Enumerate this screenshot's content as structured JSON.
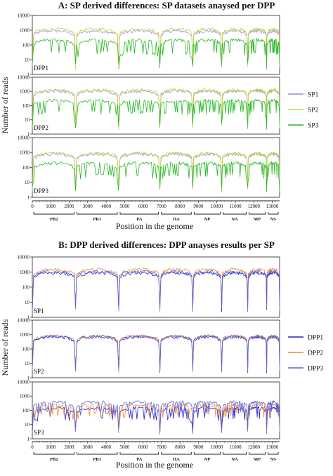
{
  "chart_data": [
    {
      "type": "line",
      "title": "A: SP derived differences: SP datasets anaysed per DPP",
      "xlabel": "Position in the genome",
      "ylabel": "Number of reads",
      "yscale": "log",
      "xlim": [
        0,
        13400
      ],
      "x_ticks": [
        "0",
        "1000",
        "2000",
        "3000",
        "4000",
        "5000",
        "6000",
        "7000",
        "8000",
        "9000",
        "10000",
        "11000",
        "12000",
        "13000"
      ],
      "segments": [
        {
          "name": "PB2",
          "start": 0,
          "end": 2341
        },
        {
          "name": "PB1",
          "start": 2341,
          "end": 4682
        },
        {
          "name": "PA",
          "start": 4682,
          "end": 6915
        },
        {
          "name": "HA",
          "start": 6915,
          "end": 8693
        },
        {
          "name": "NP",
          "start": 8693,
          "end": 10258
        },
        {
          "name": "NA",
          "start": 10258,
          "end": 11671
        },
        {
          "name": "MP",
          "start": 11671,
          "end": 12698
        },
        {
          "name": "NS",
          "start": 12698,
          "end": 13588
        }
      ],
      "legend": {
        "placement": "right",
        "entries": [
          {
            "name": "SP1",
            "color": "#8e8ee6"
          },
          {
            "name": "SP2",
            "color": "#c9d12a"
          },
          {
            "name": "SP3",
            "color": "#22b822"
          }
        ]
      },
      "subplots": [
        {
          "label": "DPP1",
          "ylim": [
            1,
            10000
          ],
          "y_ticks": [
            "1",
            "10",
            "100",
            "1000",
            "10000"
          ],
          "series": [
            {
              "name": "SP1",
              "color": "#8e8ee6",
              "level": 900
            },
            {
              "name": "SP2",
              "color": "#c9d12a",
              "level": 1200
            },
            {
              "name": "SP3",
              "color": "#22b822",
              "level": 220
            }
          ]
        },
        {
          "label": "DPP2",
          "ylim": [
            1,
            10000
          ],
          "y_ticks": [
            "1",
            "10",
            "100",
            "1000",
            "10000"
          ],
          "series": [
            {
              "name": "SP1",
              "color": "#8e8ee6",
              "level": 1100
            },
            {
              "name": "SP2",
              "color": "#c9d12a",
              "level": 1300
            },
            {
              "name": "SP3",
              "color": "#22b822",
              "level": 230
            }
          ]
        },
        {
          "label": "DPP3",
          "ylim": [
            1,
            10000
          ],
          "y_ticks": [
            "1",
            "10",
            "100",
            "1000",
            "10000"
          ],
          "series": [
            {
              "name": "SP1",
              "color": "#8e8ee6",
              "level": 800
            },
            {
              "name": "SP2",
              "color": "#c9d12a",
              "level": 900
            },
            {
              "name": "SP3",
              "color": "#22b822",
              "level": 200
            }
          ]
        }
      ]
    },
    {
      "type": "line",
      "title": "B: DPP derived differences: DPP anayses results per SP",
      "xlabel": "Position in the genome",
      "ylabel": "Number of reads",
      "yscale": "log",
      "xlim": [
        0,
        13400
      ],
      "x_ticks": [
        "0",
        "1000",
        "2000",
        "3000",
        "4000",
        "5000",
        "6000",
        "7000",
        "8000",
        "9000",
        "10000",
        "11000",
        "12000",
        "13000"
      ],
      "segments": [
        {
          "name": "PB2",
          "start": 0,
          "end": 2341
        },
        {
          "name": "PB1",
          "start": 2341,
          "end": 4682
        },
        {
          "name": "PA",
          "start": 4682,
          "end": 6915
        },
        {
          "name": "HA",
          "start": 6915,
          "end": 8693
        },
        {
          "name": "NP",
          "start": 8693,
          "end": 10258
        },
        {
          "name": "NA",
          "start": 10258,
          "end": 11671
        },
        {
          "name": "MP",
          "start": 11671,
          "end": 12698
        },
        {
          "name": "NS",
          "start": 12698,
          "end": 13588
        }
      ],
      "legend": {
        "placement": "right",
        "entries": [
          {
            "name": "DPP1",
            "color": "#2222cc"
          },
          {
            "name": "DPP2",
            "color": "#f08a30"
          },
          {
            "name": "DPP3",
            "color": "#5a62d8"
          }
        ]
      },
      "subplots": [
        {
          "label": "SP1",
          "ylim": [
            1,
            10000
          ],
          "y_ticks": [
            "1",
            "10",
            "100",
            "1000",
            "10000"
          ],
          "series": [
            {
              "name": "DPP1",
              "color": "#2222cc",
              "level": 900
            },
            {
              "name": "DPP2",
              "color": "#f08a30",
              "level": 1500
            },
            {
              "name": "DPP3",
              "color": "#5a62d8",
              "level": 1100
            }
          ]
        },
        {
          "label": "SP2",
          "ylim": [
            1,
            10000
          ],
          "y_ticks": [
            "1",
            "10",
            "100",
            "1000",
            "10000"
          ],
          "series": [
            {
              "name": "DPP1",
              "color": "#2222cc",
              "level": 700
            },
            {
              "name": "DPP2",
              "color": "#f08a30",
              "level": 800
            },
            {
              "name": "DPP3",
              "color": "#5a62d8",
              "level": 750
            }
          ]
        },
        {
          "label": "SP3",
          "ylim": [
            1,
            10000
          ],
          "y_ticks": [
            "1",
            "10",
            "100",
            "1000",
            "10000"
          ],
          "series": [
            {
              "name": "DPP1",
              "color": "#2222cc",
              "level": 150
            },
            {
              "name": "DPP2",
              "color": "#f08a30",
              "level": 250
            },
            {
              "name": "DPP3",
              "color": "#5a62d8",
              "level": 400
            }
          ]
        }
      ]
    }
  ]
}
